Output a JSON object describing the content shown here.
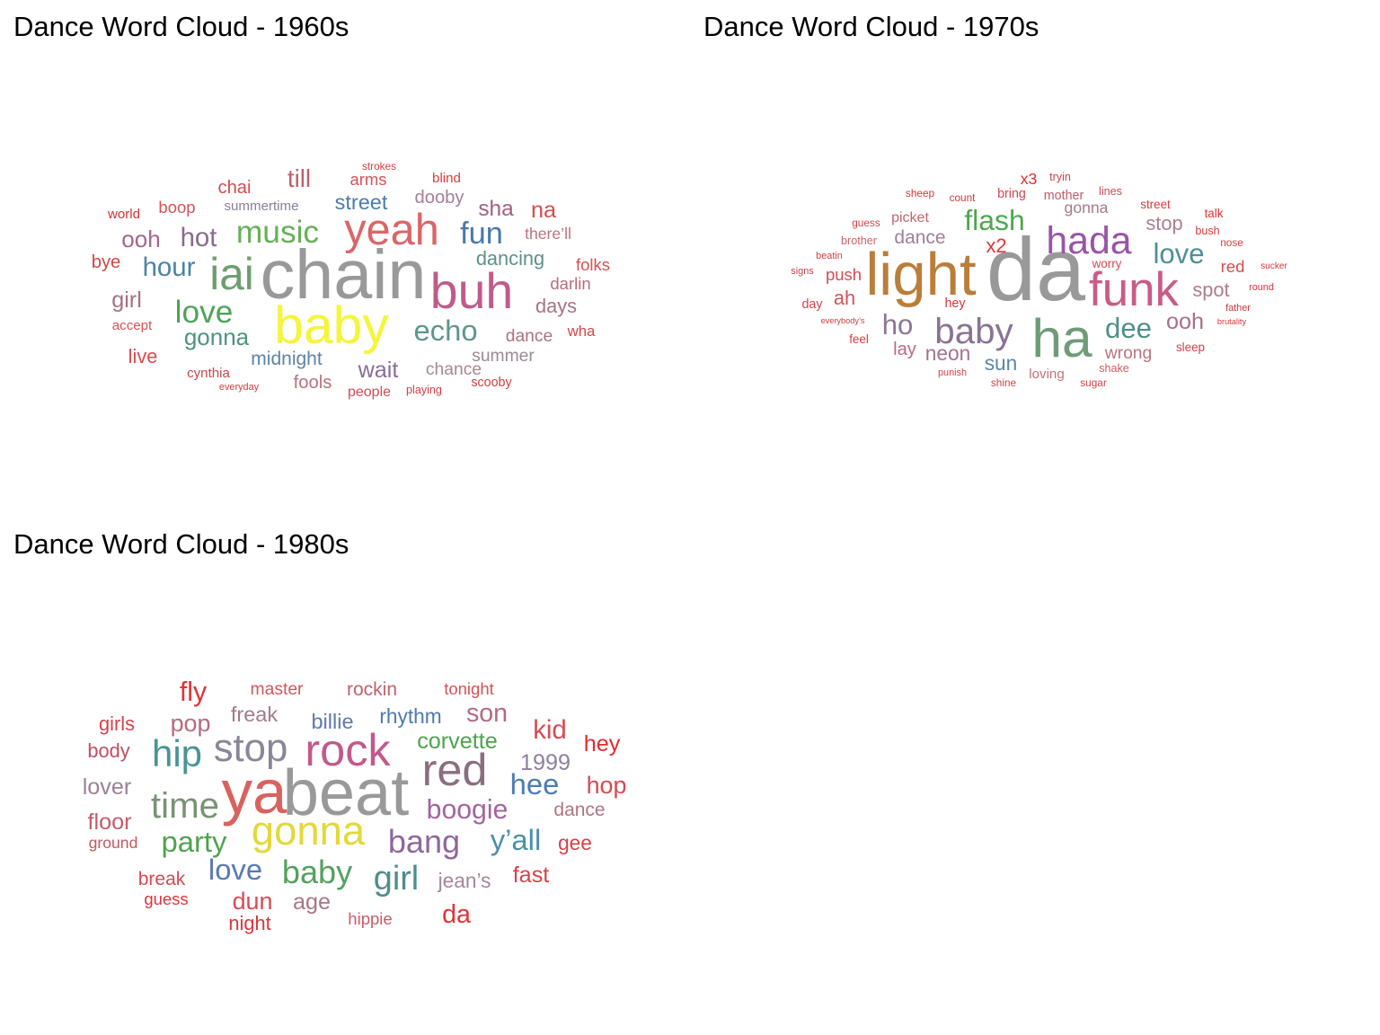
{
  "chart_data": [
    {
      "type": "wordcloud",
      "title": "Dance Word Cloud - 1960s",
      "words": [
        {
          "text": "chain",
          "freq": 92,
          "color": "#999999"
        },
        {
          "text": "baby",
          "freq": 70,
          "color": "#F5F53A"
        },
        {
          "text": "buh",
          "freq": 66,
          "color": "#BF5B8A"
        },
        {
          "text": "iai",
          "freq": 59,
          "color": "#6E9E70"
        },
        {
          "text": "yeah",
          "freq": 58,
          "color": "#D96668"
        },
        {
          "text": "music",
          "freq": 42,
          "color": "#66AF58"
        },
        {
          "text": "love",
          "freq": 42,
          "color": "#4DA457"
        },
        {
          "text": "fun",
          "freq": 41,
          "color": "#4879AD"
        },
        {
          "text": "echo",
          "freq": 39,
          "color": "#5D968F"
        },
        {
          "text": "hour",
          "freq": 35,
          "color": "#4A84A8"
        },
        {
          "text": "hot",
          "freq": 35,
          "color": "#8A6A8E"
        },
        {
          "text": "till",
          "freq": 33,
          "color": "#C05E69"
        },
        {
          "text": "ooh",
          "freq": 31,
          "color": "#A4668B"
        },
        {
          "text": "gonna",
          "freq": 31,
          "color": "#4C9580"
        },
        {
          "text": "wait",
          "freq": 30,
          "color": "#866D98"
        },
        {
          "text": "girl",
          "freq": 30,
          "color": "#A86F82"
        },
        {
          "text": "na",
          "freq": 30,
          "color": "#D64C4D"
        },
        {
          "text": "sha",
          "freq": 29,
          "color": "#A2607F"
        },
        {
          "text": "street",
          "freq": 28,
          "color": "#4A7BAE"
        },
        {
          "text": "dancing",
          "freq": 26,
          "color": "#5C9289"
        },
        {
          "text": "live",
          "freq": 26,
          "color": "#D84B50"
        },
        {
          "text": "days",
          "freq": 26,
          "color": "#A77383"
        },
        {
          "text": "midnight",
          "freq": 25,
          "color": "#5D84A3"
        },
        {
          "text": "dooby",
          "freq": 24,
          "color": "#A57E97"
        },
        {
          "text": "chai",
          "freq": 24,
          "color": "#D34C50"
        },
        {
          "text": "bye",
          "freq": 24,
          "color": "#D54545"
        },
        {
          "text": "fools",
          "freq": 24,
          "color": "#B8727D"
        },
        {
          "text": "chance",
          "freq": 23,
          "color": "#A98692"
        },
        {
          "text": "dance",
          "freq": 23,
          "color": "#A9737E"
        },
        {
          "text": "summer",
          "freq": 23,
          "color": "#9A8994"
        },
        {
          "text": "darlin",
          "freq": 22,
          "color": "#B56D7B"
        },
        {
          "text": "folks",
          "freq": 22,
          "color": "#D45050"
        },
        {
          "text": "boop",
          "freq": 22,
          "color": "#D25357"
        },
        {
          "text": "arms",
          "freq": 22,
          "color": "#D25359"
        },
        {
          "text": "there’ll",
          "freq": 21,
          "color": "#B87480"
        },
        {
          "text": "wha",
          "freq": 20,
          "color": "#D94545"
        },
        {
          "text": "people",
          "freq": 19,
          "color": "#D24B55"
        },
        {
          "text": "cynthia",
          "freq": 18,
          "color": "#C7454D"
        },
        {
          "text": "accept",
          "freq": 18,
          "color": "#D45353"
        },
        {
          "text": "summertime",
          "freq": 18,
          "color": "#8A7D9B"
        },
        {
          "text": "world",
          "freq": 18,
          "color": "#D33336"
        },
        {
          "text": "blind",
          "freq": 18,
          "color": "#DB3B3C"
        },
        {
          "text": "scooby",
          "freq": 17,
          "color": "#D43D40"
        },
        {
          "text": "playing",
          "freq": 15,
          "color": "#D13E43"
        },
        {
          "text": "strokes",
          "freq": 14,
          "color": "#D53D40"
        },
        {
          "text": "everyday",
          "freq": 13,
          "color": "#D13E42"
        }
      ]
    },
    {
      "type": "wordcloud",
      "title": "Dance Word Cloud - 1970s",
      "words": [
        {
          "text": "da",
          "freq": 118,
          "color": "#999999"
        },
        {
          "text": "light",
          "freq": 80,
          "color": "#BA7E3A"
        },
        {
          "text": "ha",
          "freq": 72,
          "color": "#6F9B79"
        },
        {
          "text": "funk",
          "freq": 63,
          "color": "#C85C87"
        },
        {
          "text": "hada",
          "freq": 51,
          "color": "#9954A8"
        },
        {
          "text": "baby",
          "freq": 48,
          "color": "#8A7393"
        },
        {
          "text": "flash",
          "freq": 38,
          "color": "#4DA74F"
        },
        {
          "text": "love",
          "freq": 37,
          "color": "#4C8E96"
        },
        {
          "text": "dee",
          "freq": 37,
          "color": "#4D9088"
        },
        {
          "text": "ho",
          "freq": 37,
          "color": "#8A7596"
        },
        {
          "text": "ooh",
          "freq": 30,
          "color": "#A4708C"
        },
        {
          "text": "sun",
          "freq": 27,
          "color": "#5988A6"
        },
        {
          "text": "neon",
          "freq": 27,
          "color": "#A27290"
        },
        {
          "text": "ah",
          "freq": 26,
          "color": "#D2525A"
        },
        {
          "text": "x2",
          "freq": 26,
          "color": "#E03537"
        },
        {
          "text": "spot",
          "freq": 26,
          "color": "#AE7B8A"
        },
        {
          "text": "stop",
          "freq": 26,
          "color": "#A97F91"
        },
        {
          "text": "dance",
          "freq": 25,
          "color": "#9F7F98"
        },
        {
          "text": "lay",
          "freq": 24,
          "color": "#B76B86"
        },
        {
          "text": "wrong",
          "freq": 23,
          "color": "#B7757F"
        },
        {
          "text": "push",
          "freq": 22,
          "color": "#D04C57"
        },
        {
          "text": "red",
          "freq": 22,
          "color": "#D94B4D"
        },
        {
          "text": "gonna",
          "freq": 21,
          "color": "#A8798D"
        },
        {
          "text": "x3",
          "freq": 21,
          "color": "#E02C2E"
        },
        {
          "text": "picket",
          "freq": 19,
          "color": "#C0676F"
        },
        {
          "text": "loving",
          "freq": 18,
          "color": "#C0717C"
        },
        {
          "text": "hey",
          "freq": 17,
          "color": "#D33538"
        },
        {
          "text": "day",
          "freq": 17,
          "color": "#D2434A"
        },
        {
          "text": "mother",
          "freq": 17,
          "color": "#C05B68"
        },
        {
          "text": "bring",
          "freq": 17,
          "color": "#CF4651"
        },
        {
          "text": "worry",
          "freq": 16,
          "color": "#D44A4D"
        },
        {
          "text": "street",
          "freq": 16,
          "color": "#D53B3E"
        },
        {
          "text": "feel",
          "freq": 16,
          "color": "#D63A3D"
        },
        {
          "text": "sleep",
          "freq": 16,
          "color": "#D53E42"
        },
        {
          "text": "talk",
          "freq": 16,
          "color": "#E02F31"
        },
        {
          "text": "shake",
          "freq": 15,
          "color": "#D05C63"
        },
        {
          "text": "brother",
          "freq": 15,
          "color": "#C9646B"
        },
        {
          "text": "bush",
          "freq": 15,
          "color": "#D93A3C"
        },
        {
          "text": "tryin",
          "freq": 15,
          "color": "#D2434A"
        },
        {
          "text": "lines",
          "freq": 15,
          "color": "#CD4A53"
        },
        {
          "text": "count",
          "freq": 14,
          "color": "#D3373B"
        },
        {
          "text": "sheep",
          "freq": 14,
          "color": "#D93436"
        },
        {
          "text": "sugar",
          "freq": 14,
          "color": "#D04249"
        },
        {
          "text": "nose",
          "freq": 14,
          "color": "#D53B3F"
        },
        {
          "text": "shine",
          "freq": 14,
          "color": "#D54043"
        },
        {
          "text": "guess",
          "freq": 14,
          "color": "#D1444A"
        },
        {
          "text": "punish",
          "freq": 13,
          "color": "#D2434A"
        },
        {
          "text": "beatin",
          "freq": 13,
          "color": "#D43D42"
        },
        {
          "text": "signs",
          "freq": 13,
          "color": "#C9444C"
        },
        {
          "text": "round",
          "freq": 13,
          "color": "#D1383C"
        },
        {
          "text": "father",
          "freq": 13,
          "color": "#D1383B"
        },
        {
          "text": "sucker",
          "freq": 12,
          "color": "#D63437"
        },
        {
          "text": "everybody’s",
          "freq": 11,
          "color": "#D13A3F"
        },
        {
          "text": "brutality",
          "freq": 11,
          "color": "#D13A3F"
        }
      ]
    },
    {
      "type": "wordcloud",
      "title": "Dance Word Cloud - 1980s",
      "words": [
        {
          "text": "beat",
          "freq": 86,
          "color": "#999999"
        },
        {
          "text": "ya",
          "freq": 82,
          "color": "#D9625E"
        },
        {
          "text": "rock",
          "freq": 60,
          "color": "#C2598A"
        },
        {
          "text": "red",
          "freq": 60,
          "color": "#8A6E80"
        },
        {
          "text": "gonna",
          "freq": 54,
          "color": "#E4D83A"
        },
        {
          "text": "stop",
          "freq": 52,
          "color": "#8B8697"
        },
        {
          "text": "hip",
          "freq": 50,
          "color": "#4A9496"
        },
        {
          "text": "time",
          "freq": 48,
          "color": "#7A9276"
        },
        {
          "text": "girl",
          "freq": 45,
          "color": "#4F8D8C"
        },
        {
          "text": "bang",
          "freq": 43,
          "color": "#8F689B"
        },
        {
          "text": "baby",
          "freq": 43,
          "color": "#54A15F"
        },
        {
          "text": "love",
          "freq": 39,
          "color": "#5779B4"
        },
        {
          "text": "y’all",
          "freq": 39,
          "color": "#4990A6"
        },
        {
          "text": "party",
          "freq": 39,
          "color": "#4FA24F"
        },
        {
          "text": "hee",
          "freq": 39,
          "color": "#4A7DB2"
        },
        {
          "text": "boogie",
          "freq": 36,
          "color": "#A3649D"
        },
        {
          "text": "fly",
          "freq": 36,
          "color": "#E03336"
        },
        {
          "text": "kid",
          "freq": 35,
          "color": "#D54B52"
        },
        {
          "text": "son",
          "freq": 34,
          "color": "#B36A7F"
        },
        {
          "text": "dun",
          "freq": 32,
          "color": "#D64C56"
        },
        {
          "text": "da",
          "freq": 34,
          "color": "#E03336"
        },
        {
          "text": "hop",
          "freq": 32,
          "color": "#D64A52"
        },
        {
          "text": "pop",
          "freq": 32,
          "color": "#B86A7F"
        },
        {
          "text": "hey",
          "freq": 30,
          "color": "#E02B2F"
        },
        {
          "text": "1999",
          "freq": 30,
          "color": "#8F81A0"
        },
        {
          "text": "corvette",
          "freq": 30,
          "color": "#4EA44F"
        },
        {
          "text": "fast",
          "freq": 30,
          "color": "#D6434A"
        },
        {
          "text": "age",
          "freq": 30,
          "color": "#A97489"
        },
        {
          "text": "floor",
          "freq": 30,
          "color": "#C45C6A"
        },
        {
          "text": "lover",
          "freq": 30,
          "color": "#9B8295"
        },
        {
          "text": "freak",
          "freq": 28,
          "color": "#A47A8C"
        },
        {
          "text": "billie",
          "freq": 28,
          "color": "#5C7BAA"
        },
        {
          "text": "rhythm",
          "freq": 27,
          "color": "#4E79AE"
        },
        {
          "text": "jean’s",
          "freq": 27,
          "color": "#A3869A"
        },
        {
          "text": "night",
          "freq": 26,
          "color": "#D9363B"
        },
        {
          "text": "gee",
          "freq": 27,
          "color": "#D54248"
        },
        {
          "text": "girls",
          "freq": 26,
          "color": "#D2444B"
        },
        {
          "text": "body",
          "freq": 26,
          "color": "#C14F63"
        },
        {
          "text": "dance",
          "freq": 25,
          "color": "#B07580"
        },
        {
          "text": "break",
          "freq": 25,
          "color": "#D24B55"
        },
        {
          "text": "rockin",
          "freq": 25,
          "color": "#C06269"
        },
        {
          "text": "master",
          "freq": 23,
          "color": "#D0575C"
        },
        {
          "text": "guess",
          "freq": 22,
          "color": "#D8383D"
        },
        {
          "text": "hippie",
          "freq": 22,
          "color": "#CC5B66"
        },
        {
          "text": "tonight",
          "freq": 22,
          "color": "#D85255"
        },
        {
          "text": "ground",
          "freq": 21,
          "color": "#C35760"
        }
      ]
    }
  ]
}
